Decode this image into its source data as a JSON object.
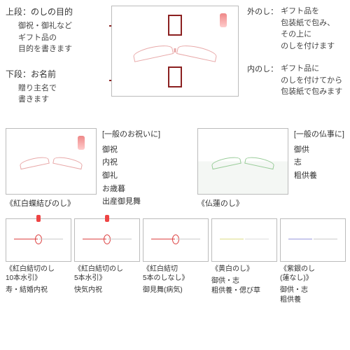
{
  "top": {
    "left": [
      {
        "title": "上段：のしの目的",
        "desc": "御祝・御礼など\nギフト品の\n目的を書きます"
      },
      {
        "title": "下段：お名前",
        "desc": "贈り主名で\n書きます"
      }
    ],
    "right": [
      {
        "title": "外のし：",
        "desc": "ギフト品を\n包装紙で包み、\nその上に\nのしを付けます"
      },
      {
        "title": "内のし：",
        "desc": "ギフト品に\nのしを付けてから\n包装紙で包みます"
      }
    ]
  },
  "middle": {
    "left": {
      "header": "[一般のお祝いに]",
      "label": "《紅白蝶結びのし》",
      "items": "御祝\n内祝\n御礼\nお歳暮\n出産御見舞"
    },
    "right": {
      "header": "[一般の仏事に]",
      "label": "《仏蓮のし》",
      "items": "御供\n志\n粗供養"
    }
  },
  "bottom": [
    {
      "label": "《紅白結切のし\n10本水引》",
      "desc": "寿・結婚内祝"
    },
    {
      "label": "《紅白結切のし\n5本水引》",
      "desc": "快気内祝"
    },
    {
      "label": "《紅白結切\n5本のしなし》",
      "desc": "御見舞(病気)"
    },
    {
      "label": "《黄白のし》",
      "desc": "御供・志\n粗供養・偲び草"
    },
    {
      "label": "《紫銀のし\n(蓮なし)》",
      "desc": "御供・志\n粗供養"
    }
  ]
}
